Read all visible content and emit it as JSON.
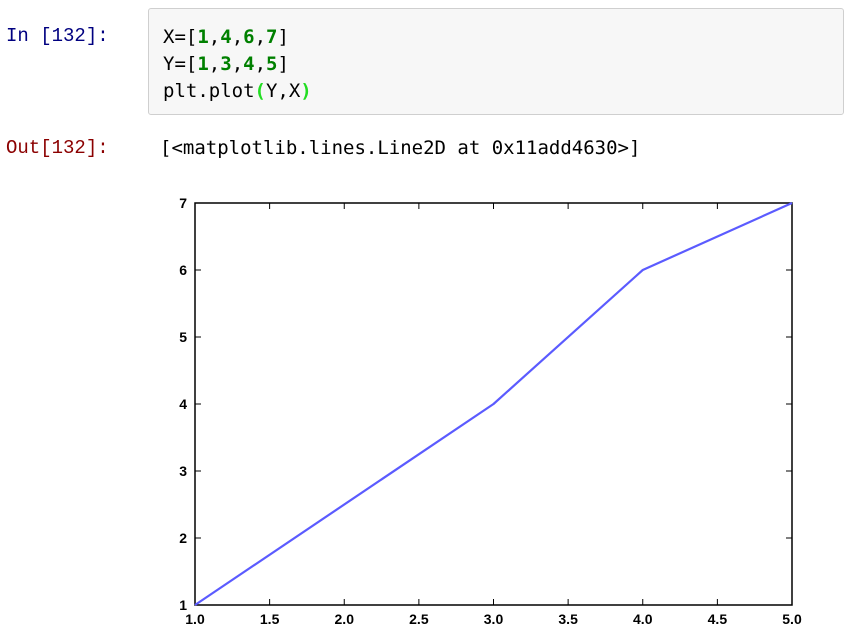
{
  "cell": {
    "in_prompt": "In [132]:",
    "out_prompt": "Out[132]:",
    "code_lines": [
      {
        "prefix": "X=[",
        "items": [
          "1",
          "4",
          "6",
          "7"
        ],
        "suffix": "]"
      },
      {
        "prefix": "Y=[",
        "items": [
          "1",
          "3",
          "4",
          "5"
        ],
        "suffix": "]"
      },
      {
        "prefix": "plt.plot",
        "args": "Y,X"
      }
    ],
    "output_text": "[<matplotlib.lines.Line2D at 0x11add4630>]"
  },
  "colors": {
    "line": "#5b5bff",
    "number": "#008000",
    "paren": "#22dd22",
    "in_prompt": "#000080",
    "out_prompt": "#8b0000"
  },
  "chart_data": {
    "type": "line",
    "x": [
      1,
      3,
      4,
      5
    ],
    "series": [
      {
        "values": [
          1,
          4,
          6,
          7
        ]
      }
    ],
    "xlim": [
      1.0,
      5.0
    ],
    "ylim": [
      1,
      7
    ],
    "xticks": [
      "1.0",
      "1.5",
      "2.0",
      "2.5",
      "3.0",
      "3.5",
      "4.0",
      "4.5",
      "5.0"
    ],
    "yticks": [
      "1",
      "2",
      "3",
      "4",
      "5",
      "6",
      "7"
    ],
    "title": "",
    "xlabel": "",
    "ylabel": "",
    "grid": false
  }
}
